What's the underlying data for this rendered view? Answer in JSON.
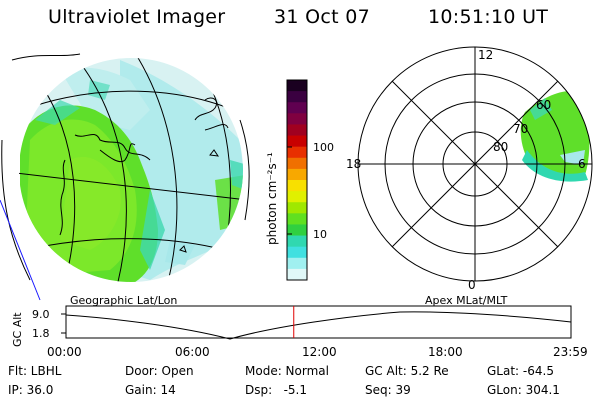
{
  "header": {
    "title": "Ultraviolet Imager",
    "date": "31 Oct 07",
    "time": "10:51:10 UT"
  },
  "colorbar": {
    "label": "photon cm⁻²s⁻¹",
    "ticks": [
      "100",
      "10"
    ],
    "colors": [
      "#1a0020",
      "#3a0040",
      "#600050",
      "#800040",
      "#a00020",
      "#c80000",
      "#e83000",
      "#f07000",
      "#f8a800",
      "#f8e000",
      "#e0f000",
      "#a0e800",
      "#60e020",
      "#30d040",
      "#30d8b0",
      "#40e0e0",
      "#a0f0f0",
      "#e0f8f8"
    ]
  },
  "panels": {
    "left_label": "Geographic Lat/Lon",
    "right_label": "Apex MLat/MLT"
  },
  "polar": {
    "mlt_labels": {
      "top": "12",
      "left": "18",
      "right": "6",
      "bottom": "0"
    },
    "lat_labels": [
      "60",
      "70",
      "80"
    ]
  },
  "altitude_plot": {
    "ylabel": "GC Alt",
    "yticks": [
      "9.0",
      "1.8"
    ],
    "xticks": [
      "00:00",
      "06:00",
      "12:00",
      "18:00",
      "23:59"
    ],
    "current_time_fraction": 0.451,
    "marker_color": "#e00000"
  },
  "status": {
    "flt": "Flt: LBHL",
    "ip": "IP: 36.0",
    "door": "Door: Open",
    "gain": "Gain: 14",
    "mode": "Mode: Normal",
    "dsp": "Dsp:   -5.1",
    "gcalt": "GC Alt: 5.2 Re",
    "seq": "Seq: 39",
    "glat": "GLat: -64.5",
    "glon": "GLon: 304.1"
  }
}
